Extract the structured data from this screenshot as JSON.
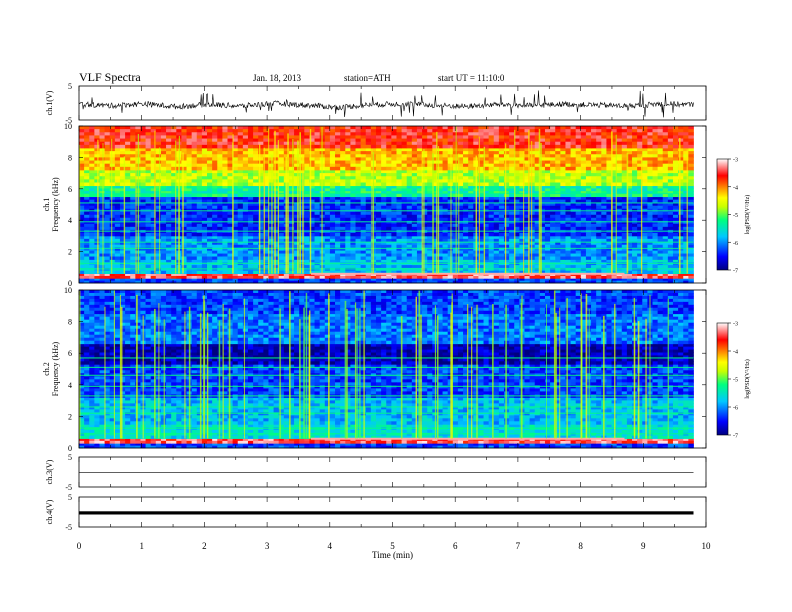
{
  "header": {
    "title": "VLF  Spectra",
    "date": "Jan. 18, 2013",
    "station": "station=ATH",
    "start": "start  UT  =   11:10:0"
  },
  "colors": {
    "colormap": [
      "#000080",
      "#0000ff",
      "#00c8ff",
      "#00ff7f",
      "#c8ff00",
      "#ffff00",
      "#ff8000",
      "#ff0000",
      "#ffffff"
    ]
  },
  "chart_data": [
    {
      "type": "line",
      "panel": "ch.1",
      "ylabel": "ch.1(V)",
      "yticks": [
        "5",
        "-5"
      ],
      "ylim": [
        -5,
        5
      ],
      "x_range_min": [
        0,
        10
      ],
      "data_end_min": 9.8,
      "series": [
        {
          "values": [
            -0.3,
            -0.8,
            -0.2,
            -1.1,
            -0.4,
            -0.9,
            -0.1,
            -0.6,
            -1.3,
            -0.5,
            -0.2,
            -0.7,
            -1.0,
            -0.4,
            -0.8,
            -0.3,
            -0.6,
            -0.9,
            -0.2,
            -0.5
          ]
        }
      ]
    },
    {
      "type": "heatmap",
      "panel": "ch.1",
      "ylabel_top": "ch.1",
      "ylabel": "Frequency  (kHz)",
      "yticks": [
        "0",
        "2",
        "4",
        "6",
        "8",
        "10"
      ],
      "ylim": [
        0,
        10
      ],
      "colorbar": {
        "label": "log(PSD(V²/Hz)",
        "ticks": [
          "-3",
          "-4",
          "-5",
          "-6",
          "-7"
        ],
        "range": [
          -7,
          -3
        ]
      },
      "bands": [
        {
          "f_from": 0.0,
          "f_to": 0.3,
          "log_psd": -6.3
        },
        {
          "f_from": 0.3,
          "f_to": 0.6,
          "log_psd": -3.4
        },
        {
          "f_from": 0.6,
          "f_to": 1.5,
          "log_psd": -5.8
        },
        {
          "f_from": 1.5,
          "f_to": 3.0,
          "log_psd": -6.0
        },
        {
          "f_from": 3.0,
          "f_to": 5.5,
          "log_psd": -6.4
        },
        {
          "f_from": 5.5,
          "f_to": 6.2,
          "log_psd": -5.3
        },
        {
          "f_from": 6.2,
          "f_to": 7.2,
          "log_psd": -4.7
        },
        {
          "f_from": 7.2,
          "f_to": 8.6,
          "log_psd": -4.2
        },
        {
          "f_from": 8.6,
          "f_to": 10.0,
          "log_psd": -3.6
        }
      ]
    },
    {
      "type": "heatmap",
      "panel": "ch.2",
      "ylabel_top": "ch.2",
      "ylabel": "Frequency  (kHz)",
      "yticks": [
        "0",
        "2",
        "4",
        "6",
        "8",
        "10"
      ],
      "ylim": [
        0,
        10
      ],
      "colorbar": {
        "label": "log(PSD(V²/Hz)",
        "ticks": [
          "-3",
          "-4",
          "-5",
          "-6",
          "-7"
        ],
        "range": [
          -7,
          -3
        ]
      },
      "bands": [
        {
          "f_from": 0.0,
          "f_to": 0.3,
          "log_psd": -6.3
        },
        {
          "f_from": 0.3,
          "f_to": 0.6,
          "log_psd": -3.4
        },
        {
          "f_from": 0.6,
          "f_to": 1.5,
          "log_psd": -5.6
        },
        {
          "f_from": 1.5,
          "f_to": 3.2,
          "log_psd": -5.8
        },
        {
          "f_from": 3.2,
          "f_to": 5.3,
          "log_psd": -6.3
        },
        {
          "f_from": 5.3,
          "f_to": 6.6,
          "log_psd": -6.8
        },
        {
          "f_from": 6.6,
          "f_to": 8.5,
          "log_psd": -6.1
        },
        {
          "f_from": 8.5,
          "f_to": 10.0,
          "log_psd": -6.3
        }
      ]
    },
    {
      "type": "line",
      "panel": "ch.3",
      "ylabel": "ch.3(V)",
      "yticks": [
        "5",
        "-5"
      ],
      "ylim": [
        -5,
        5
      ],
      "series": [
        {
          "values": [
            -0.2,
            -0.2,
            -0.2,
            -0.2,
            -0.2,
            -0.2,
            -0.2,
            -0.2,
            -0.2,
            -0.2
          ]
        }
      ]
    },
    {
      "type": "line",
      "panel": "ch.4",
      "ylabel": "ch.4(V)",
      "yticks": [
        "5",
        "-5"
      ],
      "ylim": [
        -5,
        5
      ],
      "series": [
        {
          "values": [
            -0.3,
            -0.3,
            -0.3,
            -0.3,
            -0.3,
            -0.3,
            -0.3,
            -0.3,
            -0.3,
            -0.3
          ]
        }
      ]
    }
  ],
  "xaxis": {
    "label": "Time  (min)",
    "ticks": [
      "0",
      "1",
      "2",
      "3",
      "4",
      "5",
      "6",
      "7",
      "8",
      "9",
      "10"
    ],
    "range": [
      0,
      10
    ]
  }
}
